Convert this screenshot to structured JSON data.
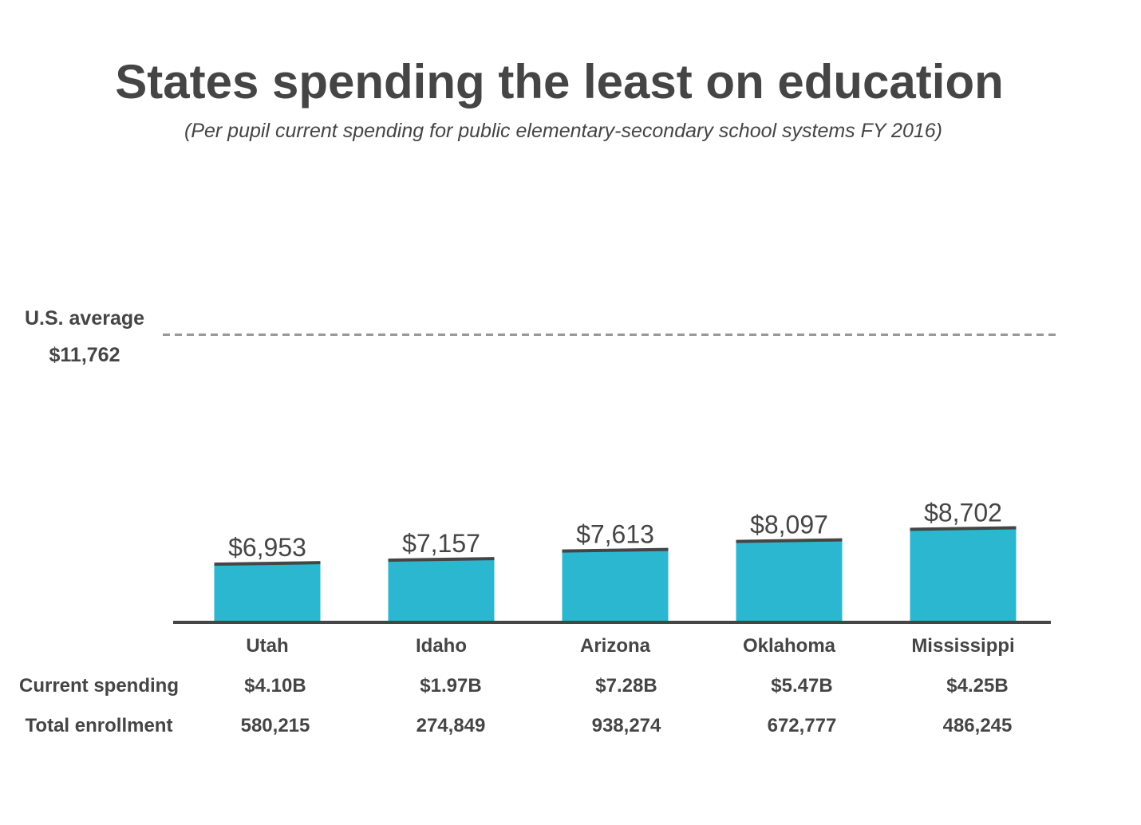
{
  "chart_data": {
    "type": "bar",
    "title": "States spending the least on education",
    "subtitle": "(Per pupil current spending for public elementary-secondary school systems FY 2016)",
    "categories": [
      "Utah",
      "Idaho",
      "Arizona",
      "Oklahoma",
      "Mississippi"
    ],
    "values": [
      6953,
      7157,
      7613,
      8097,
      8702
    ],
    "value_labels": [
      "$6,953",
      "$7,157",
      "$7,613",
      "$8,097",
      "$8,702"
    ],
    "reference_line": {
      "label": "U.S. average",
      "value": 11762,
      "value_label": "$11,762",
      "style": "dashed"
    },
    "table": {
      "rows": [
        {
          "label": "Current spending",
          "cells": [
            "$4.10B",
            "$1.97B",
            "$7.28B",
            "$5.47B",
            "$4.25B"
          ]
        },
        {
          "label": "Total enrollment",
          "cells": [
            "580,215",
            "274,849",
            "938,274",
            "672,777",
            "486,245"
          ]
        }
      ]
    },
    "ylim": [
      0,
      12000
    ],
    "grid": false,
    "colors": {
      "bar": "#2bb7d0",
      "bar_cap": "#454545",
      "text": "#454545",
      "reference_line": "#999999",
      "axis": "#454545"
    }
  }
}
